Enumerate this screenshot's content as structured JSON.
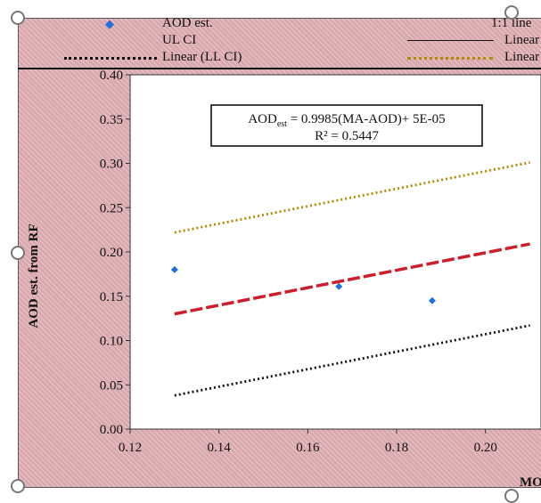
{
  "chart_data": {
    "type": "scatter",
    "xlabel": "MO",
    "ylabel": "AOD est. from RF",
    "xlim": [
      0.12,
      0.21
    ],
    "ylim": [
      0.0,
      0.4
    ],
    "xticks": [
      "0.12",
      "0.14",
      "0.16",
      "0.18",
      "0.20"
    ],
    "yticks": [
      "0.00",
      "0.05",
      "0.10",
      "0.15",
      "0.20",
      "0.25",
      "0.30",
      "0.35",
      "0.40"
    ],
    "grid": false,
    "legend_position": "top",
    "legend": [
      {
        "label": "AOD est.",
        "style": "marker"
      },
      {
        "label": "1:1 line",
        "style": "solid"
      },
      {
        "label": "UL CI",
        "style": "none"
      },
      {
        "label": "Linear",
        "style": "solid"
      },
      {
        "label": "Linear (LL CI)",
        "style": "dotted-black"
      },
      {
        "label": "Linear",
        "style": "dotted-gold"
      }
    ],
    "annotation": {
      "equation_prefix": "AOD",
      "equation_sub": "est",
      "equation_rest": " = 0.9985(MA-AOD)+ 5E-05",
      "r2": "R² = 0.5447"
    },
    "series": [
      {
        "name": "AOD est.",
        "kind": "points",
        "color": "#1f6fe0",
        "x": [
          0.13,
          0.167,
          0.188
        ],
        "y": [
          0.18,
          0.161,
          0.145
        ]
      },
      {
        "name": "Linear",
        "kind": "line",
        "color": "#cc1e2c",
        "dash": "14,4",
        "x": [
          0.13,
          0.21
        ],
        "y": [
          0.13,
          0.209
        ]
      },
      {
        "name": "Linear (UL CI)",
        "kind": "line",
        "color": "#b08a00",
        "dash": "2,3",
        "x": [
          0.13,
          0.21
        ],
        "y": [
          0.222,
          0.301
        ]
      },
      {
        "name": "Linear (LL CI)",
        "kind": "line",
        "color": "#111111",
        "dash": "2,3",
        "x": [
          0.13,
          0.21
        ],
        "y": [
          0.038,
          0.117
        ]
      }
    ]
  }
}
